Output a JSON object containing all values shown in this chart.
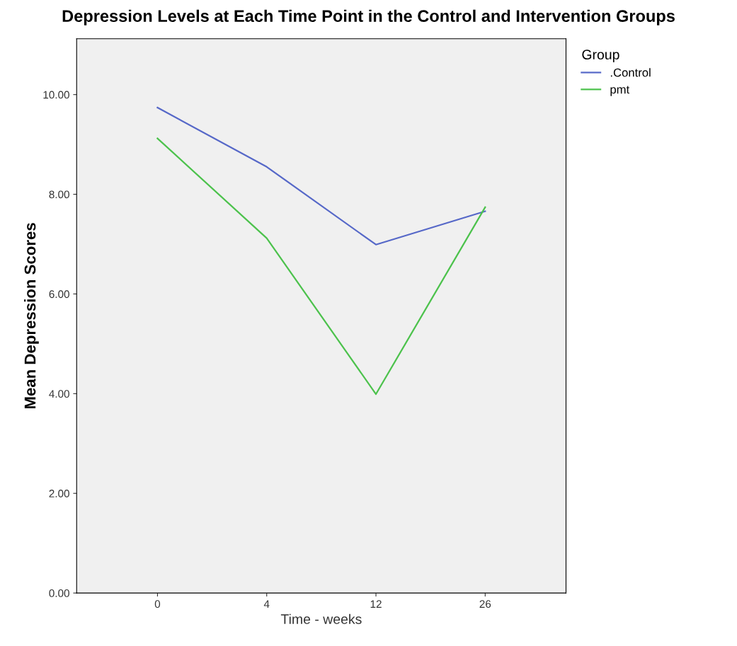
{
  "chart_data": {
    "type": "line",
    "title": "Depression Levels at Each Time Point in the Control and Intervention Groups",
    "xlabel": "Time - weeks",
    "ylabel": "Mean Depression Scores",
    "legend_title": "Group",
    "categories": [
      "0",
      "4",
      "12",
      "26"
    ],
    "series": [
      {
        "name": ".Control",
        "color": "#5668c8",
        "values": [
          9.74,
          8.55,
          6.99,
          7.66
        ]
      },
      {
        "name": "pmt",
        "color": "#4cc24c",
        "values": [
          9.12,
          7.12,
          3.99,
          7.74
        ]
      }
    ],
    "ylim": [
      0,
      11.12
    ],
    "yticks": [
      {
        "value": 0,
        "label": "0.00"
      },
      {
        "value": 2,
        "label": "2.00"
      },
      {
        "value": 4,
        "label": "4.00"
      },
      {
        "value": 6,
        "label": "6.00"
      },
      {
        "value": 8,
        "label": "8.00"
      },
      {
        "value": 10,
        "label": "10.00"
      }
    ],
    "grid": false,
    "legend": "top right",
    "marker": "none",
    "line_style": "solid"
  }
}
